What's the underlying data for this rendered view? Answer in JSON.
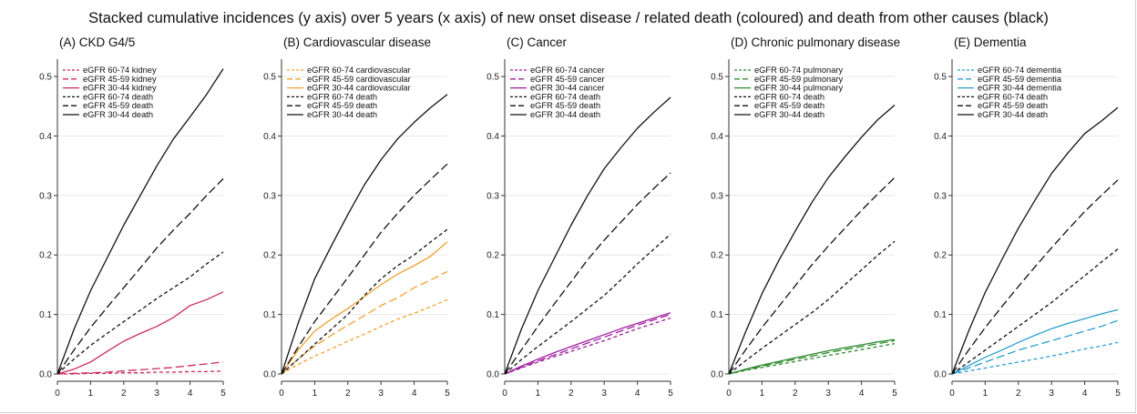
{
  "figure": {
    "title": "Stacked cumulative incidences (y axis) over 5 years (x axis) of new onset disease / related death (coloured) and death from other causes (black)"
  },
  "colors": {
    "kidney": "#cc2a5c",
    "cardiovascular": "#f0a030",
    "cancer": "#a01e9e",
    "pulmonary": "#2e8b2e",
    "dementia": "#2a9ed0",
    "death": "#111111"
  },
  "chart_data": [
    {
      "type": "line",
      "title": "(A)   CKD G4/5",
      "xlim": [
        0,
        5
      ],
      "ylim": [
        0,
        0.52
      ],
      "xticks": [
        0,
        1,
        2,
        3,
        4,
        5
      ],
      "yticks": [
        "0.0",
        "0.1",
        "0.2",
        "0.3",
        "0.4",
        "0.5"
      ],
      "grid": true,
      "legend_position": "top-left",
      "x": [
        0,
        0.5,
        1,
        1.5,
        2,
        2.5,
        3,
        3.5,
        4,
        4.5,
        5
      ],
      "series": [
        {
          "name": "eGFR 60-74 kidney",
          "color": "kidney",
          "dash": "short",
          "values": [
            0,
            0.0,
            0.001,
            0.001,
            0.002,
            0.002,
            0.003,
            0.003,
            0.004,
            0.004,
            0.005
          ]
        },
        {
          "name": "eGFR 45-59 kidney",
          "color": "kidney",
          "dash": "long",
          "values": [
            0,
            0.001,
            0.002,
            0.003,
            0.005,
            0.007,
            0.009,
            0.011,
            0.014,
            0.017,
            0.02
          ]
        },
        {
          "name": "eGFR 30-44 kidney",
          "color": "kidney",
          "dash": "solid",
          "values": [
            0,
            0.008,
            0.02,
            0.038,
            0.055,
            0.068,
            0.08,
            0.095,
            0.115,
            0.125,
            0.138
          ]
        },
        {
          "name": "eGFR 60-74 death",
          "color": "death",
          "dash": "short",
          "values": [
            0,
            0.025,
            0.048,
            0.068,
            0.088,
            0.107,
            0.127,
            0.145,
            0.163,
            0.185,
            0.205
          ]
        },
        {
          "name": "eGFR 45-59 death",
          "color": "death",
          "dash": "long",
          "values": [
            0,
            0.04,
            0.078,
            0.112,
            0.145,
            0.178,
            0.212,
            0.242,
            0.27,
            0.3,
            0.328
          ]
        },
        {
          "name": "eGFR 30-44 death",
          "color": "death",
          "dash": "solid",
          "values": [
            0,
            0.075,
            0.14,
            0.195,
            0.25,
            0.3,
            0.35,
            0.395,
            0.432,
            0.47,
            0.513
          ]
        }
      ]
    },
    {
      "type": "line",
      "title": "(B)   Cardiovascular disease",
      "xlim": [
        0,
        5
      ],
      "ylim": [
        0,
        0.52
      ],
      "xticks": [
        0,
        1,
        2,
        3,
        4,
        5
      ],
      "yticks": [
        "0.0",
        "0.1",
        "0.2",
        "0.3",
        "0.4",
        "0.5"
      ],
      "grid": true,
      "legend_position": "top-left",
      "x": [
        0,
        0.5,
        1,
        1.5,
        2,
        2.5,
        3,
        3.5,
        4,
        4.5,
        5
      ],
      "series": [
        {
          "name": "eGFR 60-74 cardiovascular",
          "color": "cardiovascular",
          "dash": "short",
          "values": [
            0,
            0.016,
            0.03,
            0.042,
            0.055,
            0.067,
            0.08,
            0.092,
            0.102,
            0.113,
            0.125
          ]
        },
        {
          "name": "eGFR 45-59 cardiovascular",
          "color": "cardiovascular",
          "dash": "long",
          "values": [
            0,
            0.025,
            0.047,
            0.065,
            0.082,
            0.098,
            0.115,
            0.128,
            0.145,
            0.158,
            0.172
          ]
        },
        {
          "name": "eGFR 30-44 cardiovascular",
          "color": "cardiovascular",
          "dash": "solid",
          "values": [
            0,
            0.04,
            0.072,
            0.092,
            0.11,
            0.13,
            0.15,
            0.168,
            0.182,
            0.198,
            0.222
          ]
        },
        {
          "name": "eGFR 60-74 death",
          "color": "death",
          "dash": "short",
          "values": [
            0,
            0.025,
            0.05,
            0.075,
            0.1,
            0.132,
            0.16,
            0.182,
            0.2,
            0.222,
            0.243
          ]
        },
        {
          "name": "eGFR 45-59 death",
          "color": "death",
          "dash": "long",
          "values": [
            0,
            0.045,
            0.088,
            0.125,
            0.162,
            0.2,
            0.238,
            0.27,
            0.3,
            0.327,
            0.353
          ]
        },
        {
          "name": "eGFR 30-44 death",
          "color": "death",
          "dash": "solid",
          "values": [
            0,
            0.085,
            0.16,
            0.215,
            0.268,
            0.318,
            0.36,
            0.395,
            0.423,
            0.448,
            0.47
          ]
        }
      ]
    },
    {
      "type": "line",
      "title": "(C)   Cancer",
      "xlim": [
        0,
        5
      ],
      "ylim": [
        0,
        0.52
      ],
      "xticks": [
        0,
        1,
        2,
        3,
        4,
        5
      ],
      "yticks": [
        "0.0",
        "0.1",
        "0.2",
        "0.3",
        "0.4",
        "0.5"
      ],
      "grid": true,
      "legend_position": "top-left",
      "x": [
        0,
        0.5,
        1,
        1.5,
        2,
        2.5,
        3,
        3.5,
        4,
        4.5,
        5
      ],
      "series": [
        {
          "name": "eGFR 60-74 cancer",
          "color": "cancer",
          "dash": "short",
          "values": [
            0,
            0.01,
            0.02,
            0.029,
            0.038,
            0.047,
            0.056,
            0.066,
            0.076,
            0.085,
            0.094
          ]
        },
        {
          "name": "eGFR 45-59 cancer",
          "color": "cancer",
          "dash": "long",
          "values": [
            0,
            0.011,
            0.022,
            0.032,
            0.042,
            0.052,
            0.062,
            0.072,
            0.082,
            0.091,
            0.1
          ]
        },
        {
          "name": "eGFR 30-44 cancer",
          "color": "cancer",
          "dash": "solid",
          "values": [
            0,
            0.013,
            0.025,
            0.036,
            0.046,
            0.056,
            0.066,
            0.076,
            0.085,
            0.094,
            0.103
          ]
        },
        {
          "name": "eGFR 60-74 death",
          "color": "death",
          "dash": "short",
          "values": [
            0,
            0.024,
            0.046,
            0.067,
            0.088,
            0.11,
            0.132,
            0.158,
            0.185,
            0.21,
            0.235
          ]
        },
        {
          "name": "eGFR 45-59 death",
          "color": "death",
          "dash": "long",
          "values": [
            0,
            0.04,
            0.08,
            0.118,
            0.155,
            0.192,
            0.225,
            0.255,
            0.285,
            0.312,
            0.338
          ]
        },
        {
          "name": "eGFR 30-44 death",
          "color": "death",
          "dash": "solid",
          "values": [
            0,
            0.075,
            0.14,
            0.195,
            0.25,
            0.3,
            0.345,
            0.38,
            0.413,
            0.44,
            0.465
          ]
        }
      ]
    },
    {
      "type": "line",
      "title": "(D)   Chronic pulmonary disease",
      "xlim": [
        0,
        5
      ],
      "ylim": [
        0,
        0.52
      ],
      "xticks": [
        0,
        1,
        2,
        3,
        4,
        5
      ],
      "yticks": [
        "0.0",
        "0.1",
        "0.2",
        "0.3",
        "0.4",
        "0.5"
      ],
      "grid": true,
      "legend_position": "top-left",
      "x": [
        0,
        0.5,
        1,
        1.5,
        2,
        2.5,
        3,
        3.5,
        4,
        4.5,
        5
      ],
      "series": [
        {
          "name": "eGFR 60-74 pulmonary",
          "color": "pulmonary",
          "dash": "short",
          "values": [
            0,
            0.006,
            0.011,
            0.016,
            0.021,
            0.026,
            0.031,
            0.036,
            0.041,
            0.046,
            0.051
          ]
        },
        {
          "name": "eGFR 45-59 pulmonary",
          "color": "pulmonary",
          "dash": "long",
          "values": [
            0,
            0.007,
            0.013,
            0.019,
            0.025,
            0.03,
            0.036,
            0.041,
            0.046,
            0.051,
            0.056
          ]
        },
        {
          "name": "eGFR 30-44 pulmonary",
          "color": "pulmonary",
          "dash": "solid",
          "values": [
            0,
            0.008,
            0.015,
            0.021,
            0.027,
            0.033,
            0.039,
            0.044,
            0.049,
            0.054,
            0.058
          ]
        },
        {
          "name": "eGFR 60-74 death",
          "color": "death",
          "dash": "short",
          "values": [
            0,
            0.022,
            0.043,
            0.063,
            0.083,
            0.103,
            0.125,
            0.15,
            0.175,
            0.2,
            0.223
          ]
        },
        {
          "name": "eGFR 45-59 death",
          "color": "death",
          "dash": "long",
          "values": [
            0,
            0.04,
            0.078,
            0.113,
            0.148,
            0.183,
            0.215,
            0.245,
            0.275,
            0.303,
            0.33
          ]
        },
        {
          "name": "eGFR 30-44 death",
          "color": "death",
          "dash": "solid",
          "values": [
            0,
            0.07,
            0.135,
            0.19,
            0.24,
            0.288,
            0.33,
            0.365,
            0.398,
            0.428,
            0.452
          ]
        }
      ]
    },
    {
      "type": "line",
      "title": "(E)   Dementia",
      "xlim": [
        0,
        5
      ],
      "ylim": [
        0,
        0.52
      ],
      "xticks": [
        0,
        1,
        2,
        3,
        4,
        5
      ],
      "yticks": [
        "0.0",
        "0.1",
        "0.2",
        "0.3",
        "0.4",
        "0.5"
      ],
      "grid": true,
      "legend_position": "top-left",
      "x": [
        0,
        0.5,
        1,
        1.5,
        2,
        2.5,
        3,
        3.5,
        4,
        4.5,
        5
      ],
      "series": [
        {
          "name": "eGFR 60-74 dementia",
          "color": "dementia",
          "dash": "short",
          "values": [
            0,
            0.005,
            0.01,
            0.015,
            0.02,
            0.025,
            0.03,
            0.036,
            0.042,
            0.047,
            0.053
          ]
        },
        {
          "name": "eGFR 45-59 dementia",
          "color": "dementia",
          "dash": "long",
          "values": [
            0,
            0.01,
            0.02,
            0.03,
            0.04,
            0.048,
            0.056,
            0.064,
            0.072,
            0.08,
            0.09
          ]
        },
        {
          "name": "eGFR 30-44 dementia",
          "color": "dementia",
          "dash": "solid",
          "values": [
            0,
            0.014,
            0.028,
            0.04,
            0.053,
            0.065,
            0.076,
            0.085,
            0.093,
            0.101,
            0.108
          ]
        },
        {
          "name": "eGFR 60-74 death",
          "color": "death",
          "dash": "short",
          "values": [
            0,
            0.02,
            0.04,
            0.06,
            0.08,
            0.1,
            0.12,
            0.143,
            0.165,
            0.188,
            0.21
          ]
        },
        {
          "name": "eGFR 45-59 death",
          "color": "death",
          "dash": "long",
          "values": [
            0,
            0.04,
            0.078,
            0.113,
            0.147,
            0.18,
            0.212,
            0.243,
            0.273,
            0.3,
            0.326
          ]
        },
        {
          "name": "eGFR 30-44 death",
          "color": "death",
          "dash": "solid",
          "values": [
            0,
            0.072,
            0.137,
            0.192,
            0.245,
            0.292,
            0.337,
            0.372,
            0.404,
            0.425,
            0.448
          ]
        }
      ]
    }
  ]
}
